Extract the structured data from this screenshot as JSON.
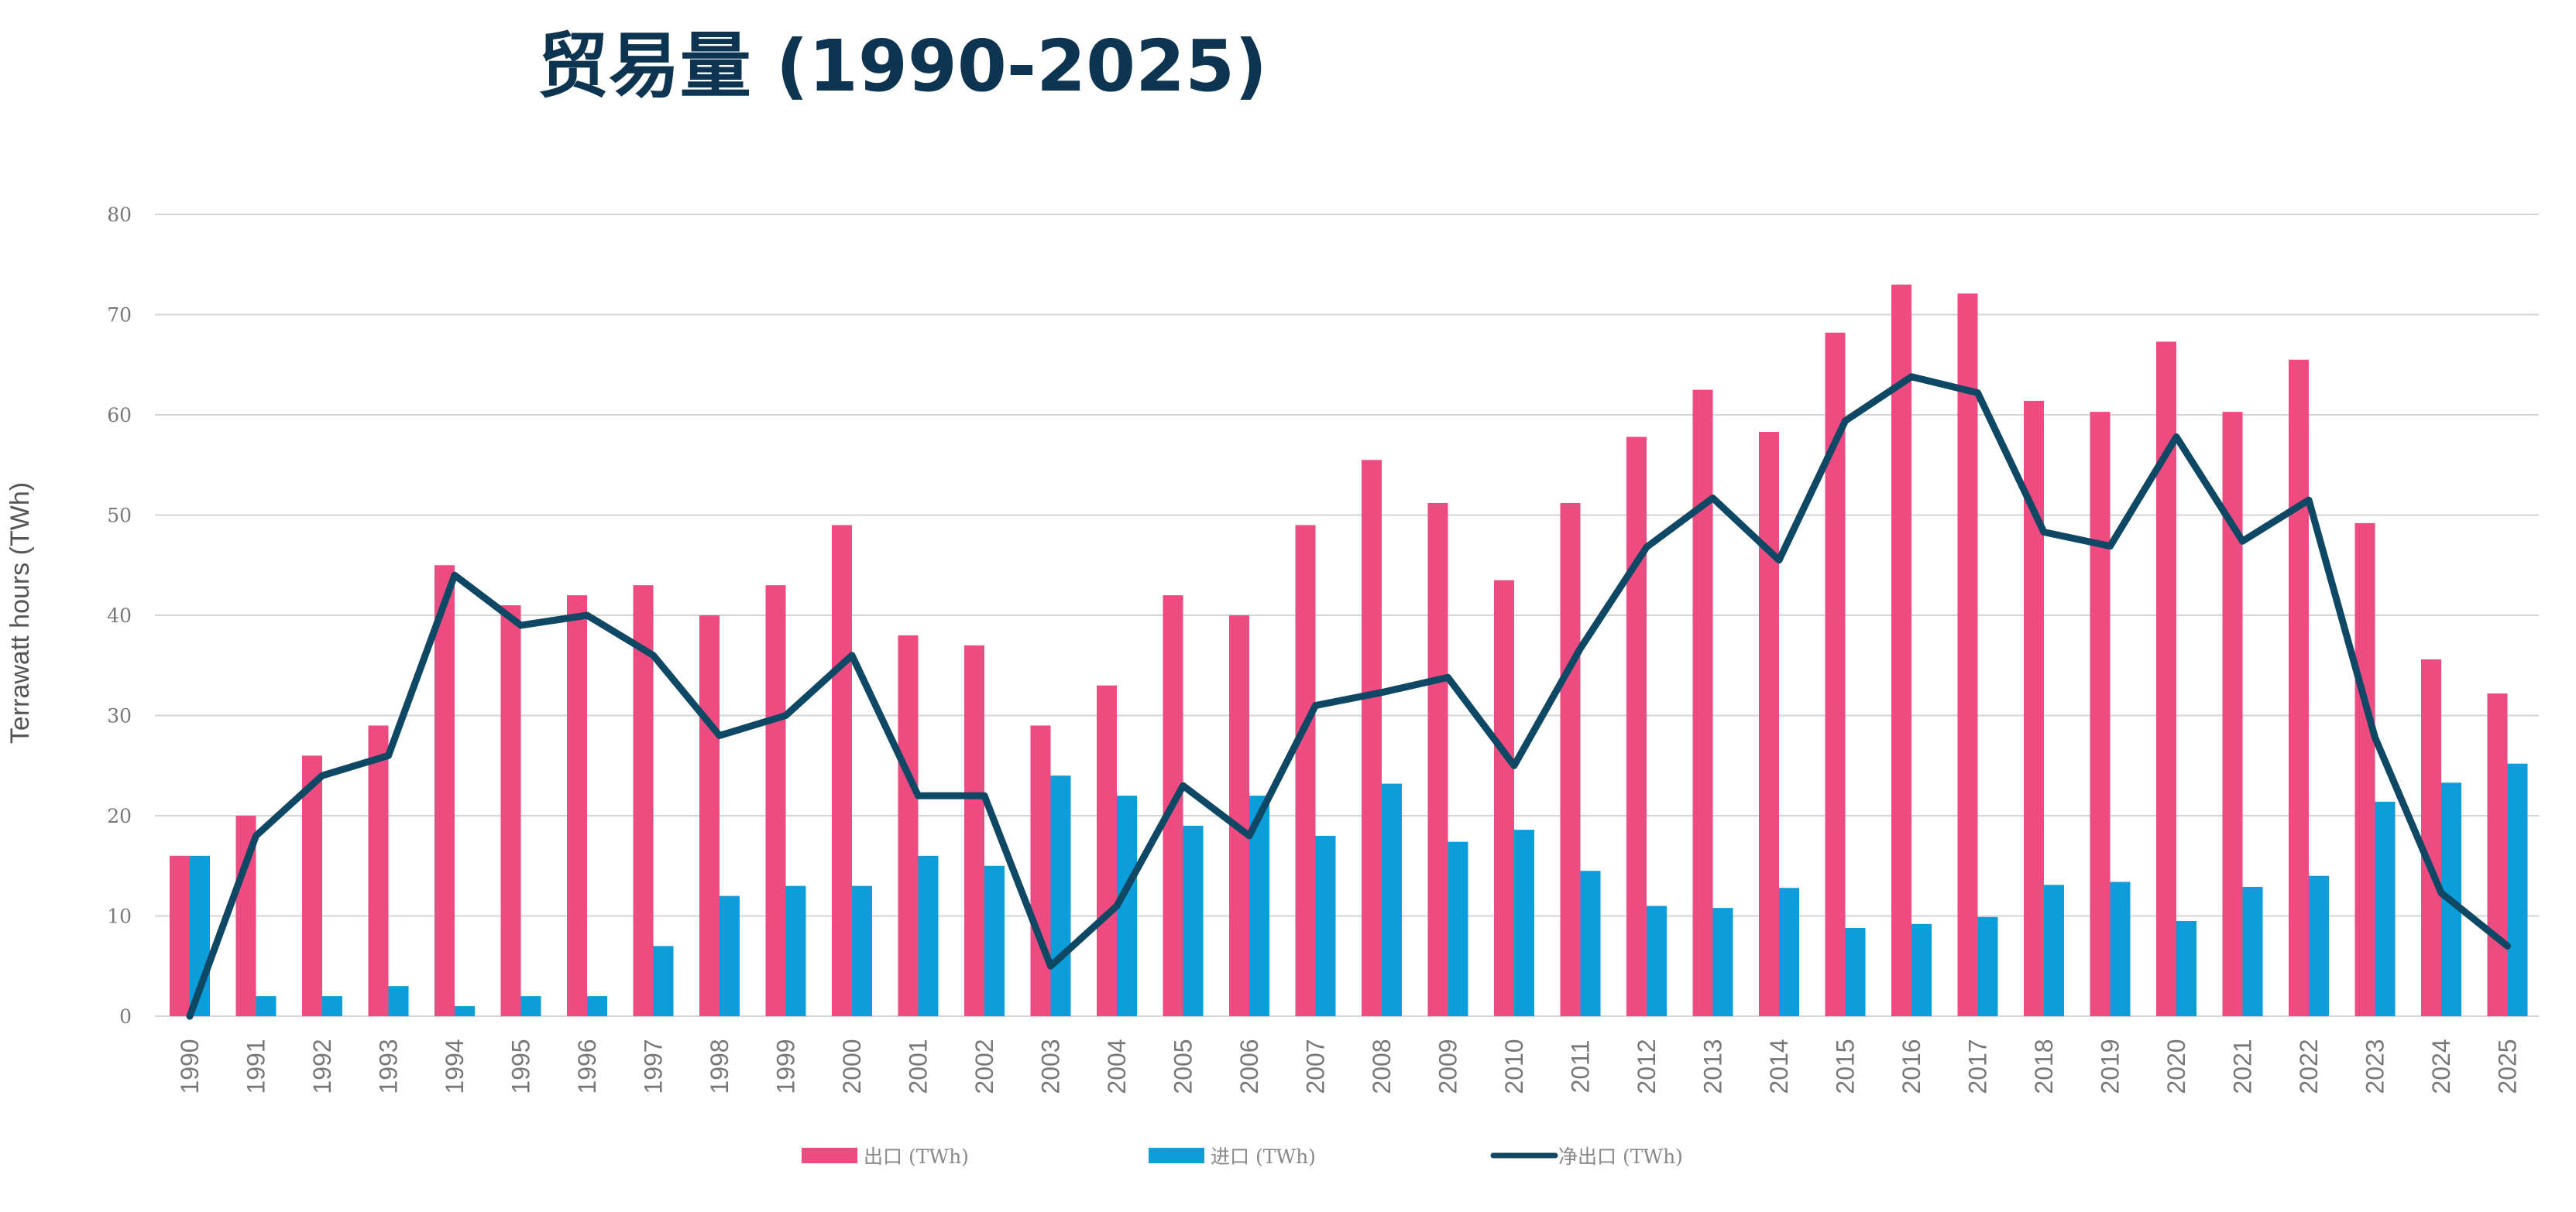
{
  "chart_data": {
    "type": "bar",
    "title": "贸易量 (1990-2025)",
    "ylabel": "Terrawatt hours (TWh)",
    "xlabel": "",
    "ylim": [
      0,
      80
    ],
    "yticks": [
      0,
      10,
      20,
      30,
      40,
      50,
      60,
      70,
      80
    ],
    "grid": true,
    "legend_position": "bottom-center",
    "categories": [
      "1990",
      "1991",
      "1992",
      "1993",
      "1994",
      "1995",
      "1996",
      "1997",
      "1998",
      "1999",
      "2000",
      "2001",
      "2002",
      "2003",
      "2004",
      "2005",
      "2006",
      "2007",
      "2008",
      "2009",
      "2010",
      "2011",
      "2012",
      "2013",
      "2014",
      "2015",
      "2016",
      "2017",
      "2018",
      "2019",
      "2020",
      "2021",
      "2022",
      "2023",
      "2024",
      "2025"
    ],
    "series": [
      {
        "name": "出口 (TWh)",
        "type": "bar",
        "color": "#ee4b80",
        "values": [
          16,
          20,
          26,
          29,
          45,
          41,
          42,
          43,
          40,
          43,
          49,
          38,
          37,
          29,
          33,
          42,
          40,
          49,
          55.5,
          51.2,
          43.5,
          51.2,
          57.8,
          62.5,
          58.3,
          68.2,
          73,
          72.1,
          61.4,
          60.3,
          67.3,
          60.3,
          65.5,
          49.2,
          35.6,
          32.2
        ]
      },
      {
        "name": "进口 (TWh)",
        "type": "bar",
        "color": "#0d9ddb",
        "values": [
          16,
          2,
          2,
          3,
          1,
          2,
          2,
          7,
          12,
          13,
          13,
          16,
          15,
          24,
          22,
          19,
          22,
          18,
          23.2,
          17.4,
          18.6,
          14.5,
          11,
          10.8,
          12.8,
          8.8,
          9.2,
          9.9,
          13.1,
          13.4,
          9.5,
          12.9,
          14,
          21.4,
          23.3,
          25.2
        ]
      },
      {
        "name": "净出口 (TWh)",
        "type": "line",
        "color": "#0f4865",
        "values": [
          0,
          18,
          24,
          26,
          44,
          39,
          40,
          36,
          28,
          30,
          36,
          22,
          22,
          5,
          11,
          23,
          18,
          31,
          32.3,
          33.8,
          25,
          36.7,
          46.8,
          51.7,
          45.5,
          59.4,
          63.8,
          62.2,
          48.3,
          46.9,
          57.8,
          47.4,
          51.5,
          27.8,
          12.3,
          7
        ]
      }
    ]
  }
}
